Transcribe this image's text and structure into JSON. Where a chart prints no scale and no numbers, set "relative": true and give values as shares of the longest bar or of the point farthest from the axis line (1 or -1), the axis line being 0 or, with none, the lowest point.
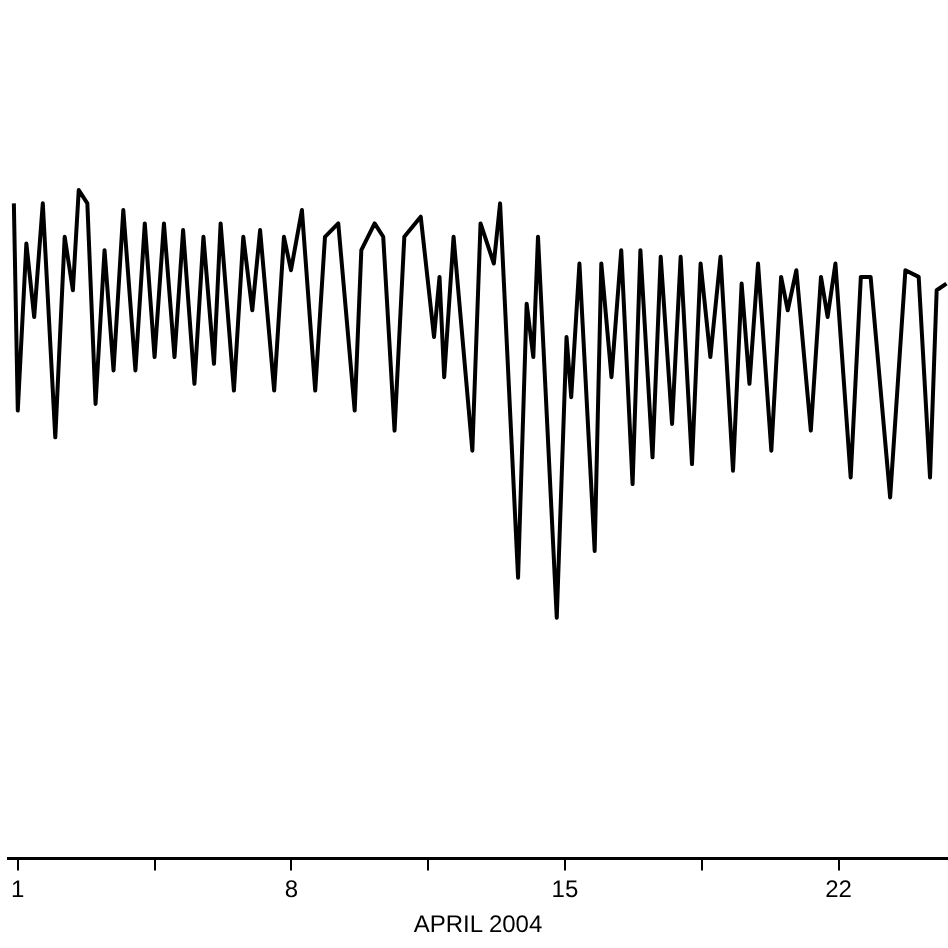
{
  "chart_data": {
    "type": "line",
    "xlabel": "APRIL 2004",
    "relative": true,
    "xlim": [
      0.75,
      24.8
    ],
    "xticks": [
      1,
      {
        "value": 4.5,
        "label": null
      },
      8,
      {
        "value": 11.5,
        "label": null
      },
      15,
      {
        "value": 18.5,
        "label": null
      },
      22
    ],
    "grid": false,
    "legend": false,
    "marker": "none",
    "line_style": "solid",
    "x": [
      0.9,
      1.0,
      1.22,
      1.42,
      1.64,
      1.96,
      2.2,
      2.41,
      2.56,
      2.78,
      2.99,
      3.22,
      3.45,
      3.7,
      4.01,
      4.25,
      4.5,
      4.74,
      5.01,
      5.23,
      5.52,
      5.75,
      6.02,
      6.19,
      6.53,
      6.77,
      7.0,
      7.2,
      7.56,
      7.81,
      7.99,
      8.27,
      8.61,
      8.86,
      9.2,
      9.62,
      9.79,
      10.13,
      10.35,
      10.64,
      10.89,
      11.31,
      11.65,
      11.79,
      11.91,
      12.15,
      12.63,
      12.84,
      13.18,
      13.34,
      13.8,
      14.02,
      14.19,
      14.31,
      14.79,
      15.04,
      15.16,
      15.37,
      15.76,
      15.93,
      16.19,
      16.44,
      16.73,
      16.93,
      17.24,
      17.45,
      17.74,
      17.96,
      18.25,
      18.47,
      18.72,
      18.98,
      19.3,
      19.52,
      19.72,
      19.94,
      20.28,
      20.53,
      20.7,
      20.92,
      21.29,
      21.55,
      21.72,
      21.92,
      22.31,
      22.57,
      22.82,
      23.32,
      23.71,
      24.05,
      24.34,
      24.51,
      24.76
    ],
    "series": [
      {
        "color": "#000000",
        "values": [
          0.98,
          0.67,
          0.92,
          0.81,
          0.98,
          0.63,
          0.93,
          0.85,
          1.0,
          0.98,
          0.68,
          0.91,
          0.73,
          0.97,
          0.73,
          0.95,
          0.75,
          0.95,
          0.75,
          0.94,
          0.71,
          0.93,
          0.74,
          0.95,
          0.7,
          0.93,
          0.82,
          0.94,
          0.7,
          0.93,
          0.88,
          0.97,
          0.7,
          0.93,
          0.95,
          0.67,
          0.91,
          0.95,
          0.93,
          0.64,
          0.93,
          0.96,
          0.78,
          0.87,
          0.72,
          0.93,
          0.61,
          0.95,
          0.89,
          0.98,
          0.42,
          0.83,
          0.75,
          0.93,
          0.36,
          0.78,
          0.69,
          0.89,
          0.46,
          0.89,
          0.72,
          0.91,
          0.56,
          0.91,
          0.6,
          0.9,
          0.65,
          0.9,
          0.59,
          0.89,
          0.75,
          0.9,
          0.58,
          0.86,
          0.71,
          0.89,
          0.61,
          0.87,
          0.82,
          0.88,
          0.64,
          0.87,
          0.81,
          0.89,
          0.57,
          0.87,
          0.87,
          0.54,
          0.88,
          0.87,
          0.57,
          0.85,
          0.86
        ]
      }
    ]
  }
}
